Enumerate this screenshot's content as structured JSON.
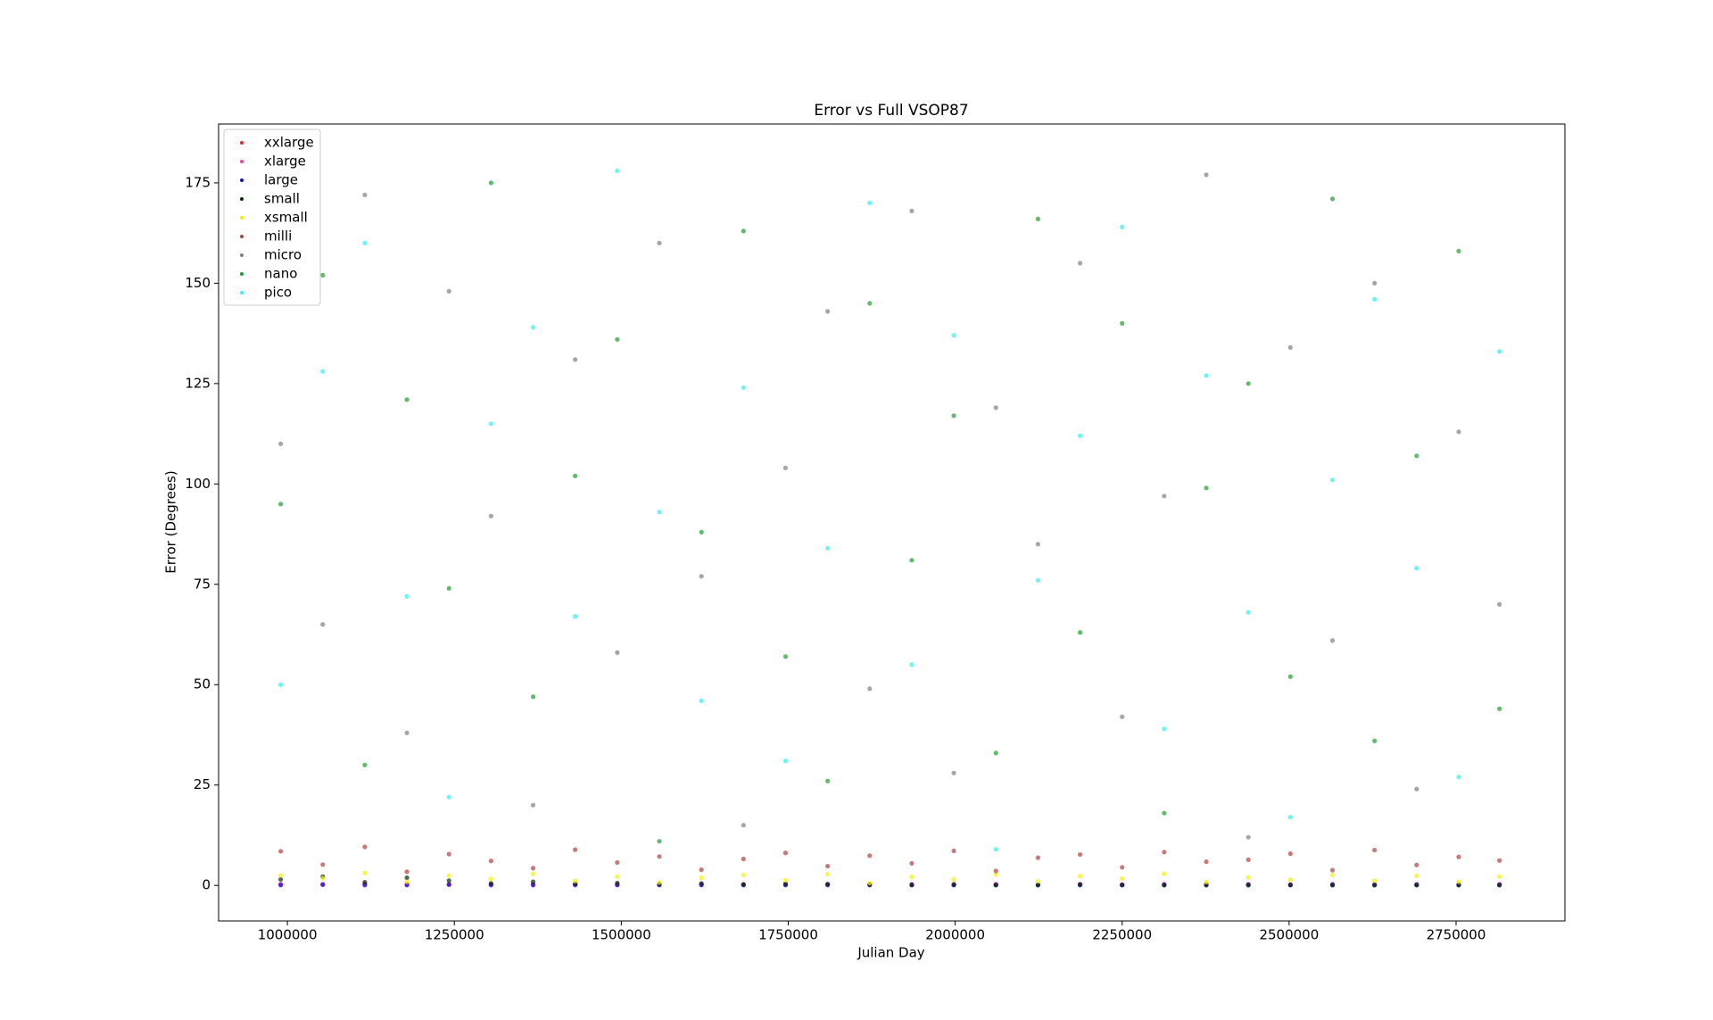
{
  "chart_data": {
    "type": "scatter",
    "title": "Error vs Full VSOP87",
    "x_label": "Julian Day",
    "y_label": "Error (Degrees)",
    "xlim": [
      897000,
      2913000
    ],
    "ylim": [
      -8.85,
      189.65
    ],
    "xticks": [
      1000000,
      1250000,
      1500000,
      1750000,
      2000000,
      2250000,
      2500000,
      2750000
    ],
    "yticks": [
      0,
      25,
      50,
      75,
      100,
      125,
      150,
      175
    ],
    "grid": false,
    "legend": "upper left",
    "x": [
      990000,
      1053000,
      1116000,
      1179000,
      1242000,
      1305000,
      1368000,
      1431000,
      1494000,
      1557000,
      1620000,
      1683000,
      1746000,
      1809000,
      1872000,
      1935000,
      1998000,
      2061000,
      2124000,
      2187000,
      2250000,
      2313000,
      2376000,
      2439000,
      2502000,
      2565000,
      2628000,
      2691000,
      2754000,
      2815000
    ],
    "series": [
      {
        "name": "xxlarge",
        "color": "#e8262e",
        "values": [
          0.3,
          0.2,
          0.4,
          0.3,
          0.2,
          0.3,
          0.2,
          0.3,
          0.2,
          0.3,
          0.2,
          0.3,
          0.2,
          0.3,
          0.2,
          0.3,
          0.2,
          0.3,
          0.2,
          0.3,
          0.2,
          0.3,
          0.2,
          0.3,
          0.2,
          0.3,
          0.2,
          0.3,
          0.2,
          0.3
        ]
      },
      {
        "name": "xlarge",
        "color": "#ff3fb4",
        "values": [
          0.2,
          0.3,
          0.2,
          0.2,
          0.3,
          0.2,
          0.2,
          0.3,
          0.2,
          0.2,
          0.3,
          0.2,
          0.2,
          0.3,
          0.2,
          0.2,
          0.3,
          0.2,
          0.2,
          0.3,
          0.2,
          0.2,
          0.3,
          0.2,
          0.2,
          0.3,
          0.2,
          0.2,
          0.3,
          0.2
        ]
      },
      {
        "name": "large",
        "color": "#1010e0",
        "values": [
          0.1,
          0.2,
          0.1,
          0.1,
          0.2,
          0.1,
          0.1,
          0.1,
          0.1,
          0.1,
          0.1,
          0.1,
          0.1,
          0.1,
          0.1,
          0.1,
          0.1,
          0.1,
          0.1,
          0.1,
          0.1,
          0.1,
          0.1,
          0.1,
          0.1,
          0.1,
          0.1,
          0.1,
          0.1,
          0.1
        ]
      },
      {
        "name": "small",
        "color": "#0a2a0a",
        "values": [
          1.5,
          2.2,
          0.8,
          1.9,
          1.2,
          0.5,
          0.9,
          0.4,
          0.6,
          0.3,
          0.5,
          0.2,
          0.4,
          0.3,
          0.2,
          0.1,
          0.2,
          0.1,
          0.1,
          0.2,
          0.1,
          0.1,
          0.1,
          0.1,
          0.1,
          0.1,
          0.1,
          0.1,
          0.1,
          0.1
        ]
      },
      {
        "name": "xsmall",
        "color": "#f2f200",
        "values": [
          2.5,
          1.8,
          3.1,
          0.9,
          2.4,
          1.6,
          2.9,
          1.1,
          2.2,
          0.7,
          1.9,
          2.6,
          1.3,
          2.8,
          0.6,
          2.1,
          1.5,
          2.7,
          1.0,
          2.3,
          1.7,
          2.9,
          0.8,
          2.0,
          1.4,
          2.6,
          1.2,
          2.4,
          0.9,
          2.2
        ]
      },
      {
        "name": "milli",
        "color": "#b04040",
        "values": [
          8.5,
          5.2,
          9.6,
          3.4,
          7.8,
          6.1,
          4.3,
          8.9,
          5.7,
          7.2,
          3.9,
          6.6,
          8.1,
          4.8,
          7.4,
          5.5,
          8.6,
          3.6,
          6.9,
          7.7,
          4.5,
          8.3,
          5.9,
          6.4,
          7.9,
          3.8,
          8.8,
          5.1,
          7.1,
          6.2
        ]
      },
      {
        "name": "micro",
        "color": "#808080",
        "values": [
          110,
          65,
          172,
          38,
          148,
          92,
          20,
          131,
          58,
          160,
          77,
          15,
          104,
          143,
          49,
          168,
          28,
          119,
          85,
          155,
          42,
          97,
          177,
          12,
          134,
          61,
          150,
          24,
          113,
          70
        ]
      },
      {
        "name": "nano",
        "color": "#1e9e2e",
        "values": [
          95,
          152,
          30,
          121,
          74,
          175,
          47,
          102,
          136,
          11,
          88,
          163,
          57,
          26,
          145,
          81,
          117,
          33,
          166,
          63,
          140,
          18,
          99,
          125,
          52,
          171,
          36,
          107,
          158,
          44
        ]
      },
      {
        "name": "pico",
        "color": "#30f0f0",
        "values": [
          50,
          128,
          160,
          72,
          22,
          115,
          139,
          67,
          178,
          93,
          46,
          124,
          31,
          84,
          170,
          55,
          137,
          9,
          76,
          112,
          164,
          39,
          127,
          68,
          17,
          101,
          146,
          79,
          27,
          133
        ]
      }
    ]
  }
}
